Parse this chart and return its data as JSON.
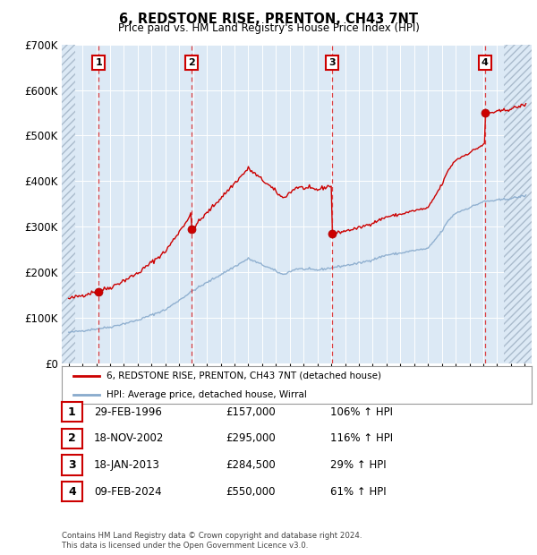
{
  "title": "6, REDSTONE RISE, PRENTON, CH43 7NT",
  "subtitle": "Price paid vs. HM Land Registry's House Price Index (HPI)",
  "ylim": [
    0,
    700000
  ],
  "yticks": [
    0,
    100000,
    200000,
    300000,
    400000,
    500000,
    600000,
    700000
  ],
  "ytick_labels": [
    "£0",
    "£100K",
    "£200K",
    "£300K",
    "£400K",
    "£500K",
    "£600K",
    "£700K"
  ],
  "background_color": "#dce9f5",
  "hatch_color": "#c8d8e8",
  "grid_color": "#ffffff",
  "red_line_color": "#cc0000",
  "blue_line_color": "#88aacc",
  "dot_color": "#cc0000",
  "sale_dates": [
    1996.16,
    2002.88,
    2013.05,
    2024.11
  ],
  "sale_prices": [
    157000,
    295000,
    284500,
    550000
  ],
  "sale_labels": [
    "1",
    "2",
    "3",
    "4"
  ],
  "legend_label_red": "6, REDSTONE RISE, PRENTON, CH43 7NT (detached house)",
  "legend_label_blue": "HPI: Average price, detached house, Wirral",
  "table_rows": [
    {
      "num": "1",
      "date": "29-FEB-1996",
      "price": "£157,000",
      "pct": "106% ↑ HPI"
    },
    {
      "num": "2",
      "date": "18-NOV-2002",
      "price": "£295,000",
      "pct": "116% ↑ HPI"
    },
    {
      "num": "3",
      "date": "18-JAN-2013",
      "price": "£284,500",
      "pct": "29% ↑ HPI"
    },
    {
      "num": "4",
      "date": "09-FEB-2024",
      "price": "£550,000",
      "pct": "61% ↑ HPI"
    }
  ],
  "footer": "Contains HM Land Registry data © Crown copyright and database right 2024.\nThis data is licensed under the Open Government Licence v3.0.",
  "xmin": 1993.5,
  "xmax": 2027.5,
  "hatch_left_end": 1994.5,
  "hatch_right_start": 2025.5
}
